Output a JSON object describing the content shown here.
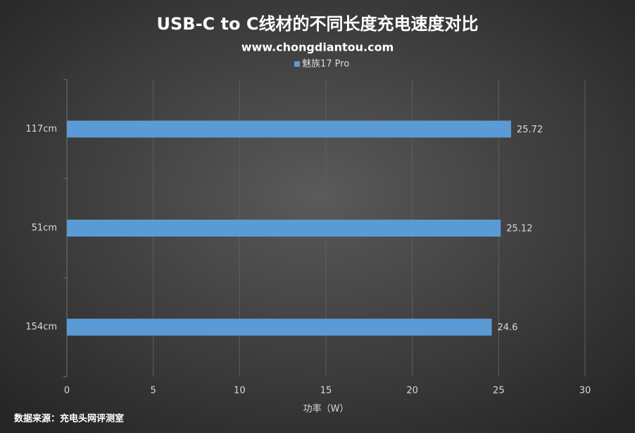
{
  "chart_data": {
    "type": "bar",
    "orientation": "horizontal",
    "title": "USB-C to C线材的不同长度充电速度对比",
    "subtitle": "www.chongdiantou.com",
    "categories": [
      "117cm",
      "51cm",
      "154cm"
    ],
    "series": [
      {
        "name": "魅族17 Pro",
        "color": "#5b9bd5",
        "values": [
          25.72,
          25.12,
          24.6
        ]
      }
    ],
    "xlim": [
      0,
      30
    ],
    "xticks": [
      0,
      5,
      10,
      15,
      20,
      25,
      30
    ],
    "grid": true,
    "xlabel": "功率（W）",
    "source": "数据来源：充电头网评测室"
  }
}
